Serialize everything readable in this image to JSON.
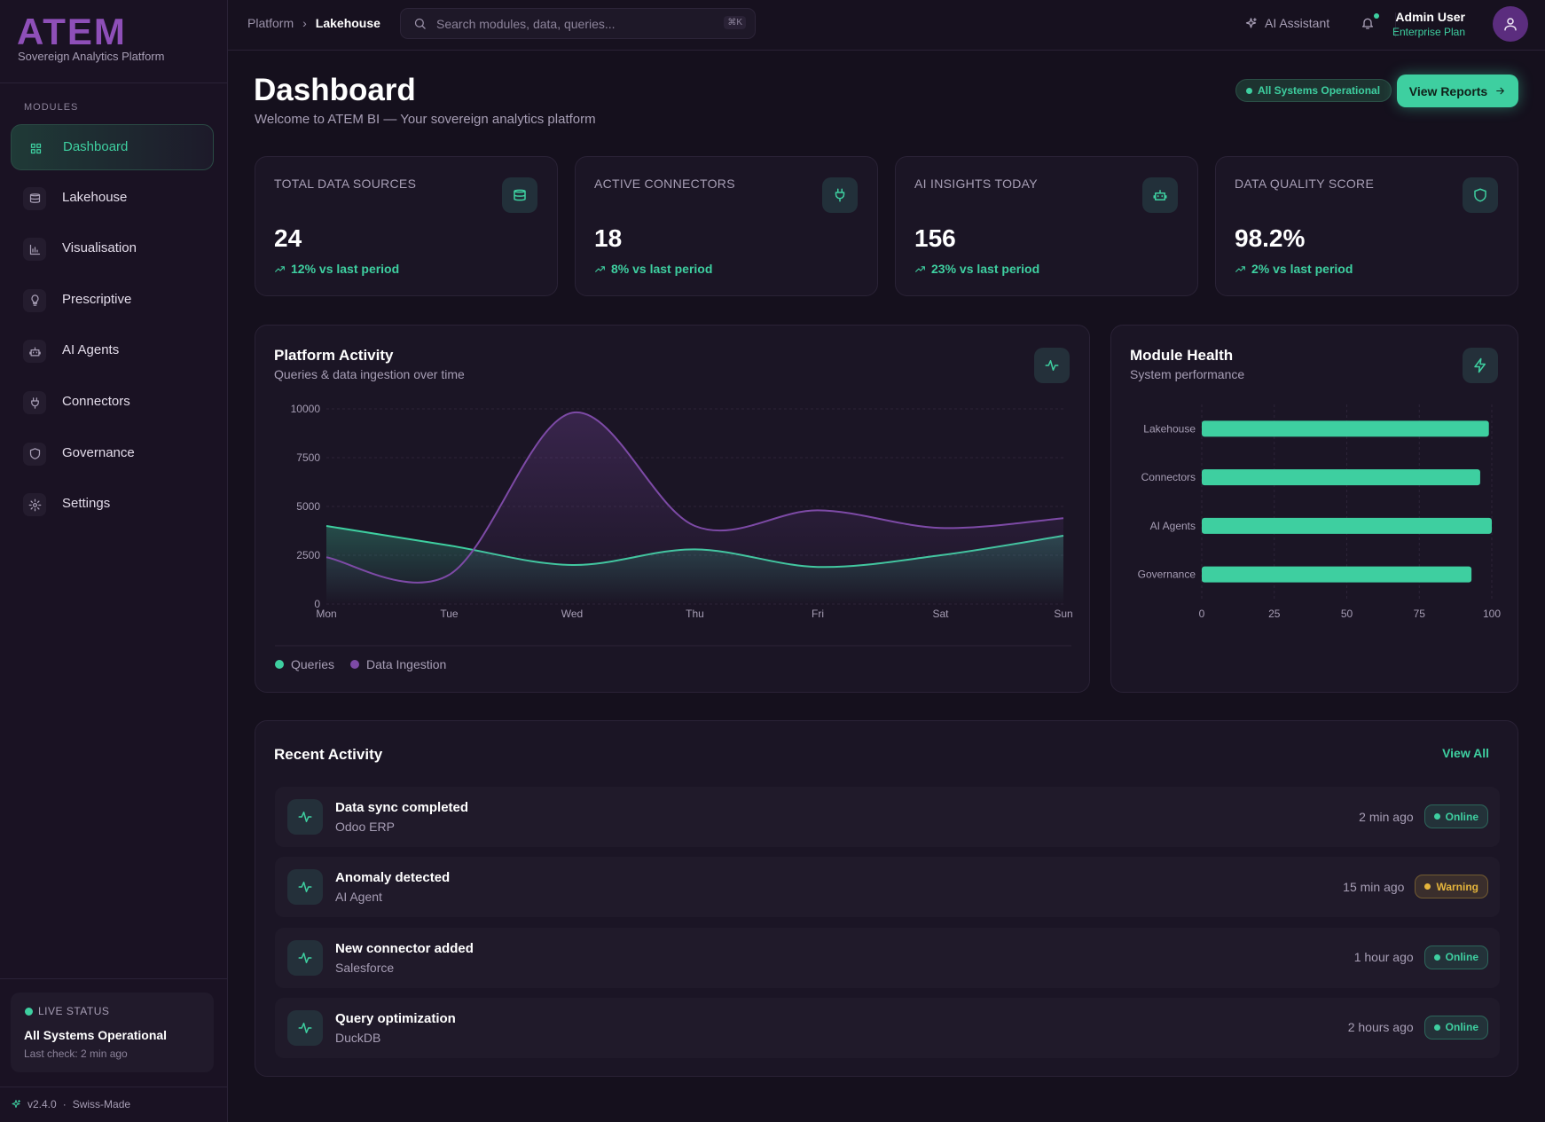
{
  "sidebar": {
    "logo": "ATEM",
    "tagline": "Sovereign Analytics Platform",
    "section": "MODULES",
    "nav": [
      "Dashboard",
      "Lakehouse",
      "Visualisation",
      "Prescriptive",
      "AI Agents",
      "Connectors",
      "Governance",
      "Settings"
    ],
    "status": {
      "label": "LIVE STATUS",
      "title": "All Systems Operational",
      "note": "Last check: 2 min ago"
    },
    "version": "v2.4.0",
    "separator": "·",
    "origin": "Swiss-Made"
  },
  "header": {
    "breadcrumb": [
      "Platform",
      "Lakehouse"
    ],
    "breadcrumb_separator": "›",
    "search": "Search modules, data, queries...",
    "shortcut": "⌘K",
    "assistant": "AI Assistant",
    "user": "Admin User",
    "plan": "Enterprise Plan"
  },
  "page": {
    "title": "Dashboard",
    "subtitle": "Welcome to ATEM BI — Your sovereign analytics platform",
    "status": "All Systems Operational",
    "button": "View Reports"
  },
  "stats": [
    {
      "label": "TOTAL DATA SOURCES",
      "value": "24",
      "change": "12% vs last period"
    },
    {
      "label": "ACTIVE CONNECTORS",
      "value": "18",
      "change": "8% vs last period"
    },
    {
      "label": "AI INSIGHTS TODAY",
      "value": "156",
      "change": "23% vs last period"
    },
    {
      "label": "DATA QUALITY SCORE",
      "value": "98.2%",
      "change": "2% vs last period"
    }
  ],
  "chart_data": [
    {
      "type": "line",
      "title": "Platform Activity",
      "subtitle": "Queries & data ingestion over time",
      "categories": [
        "Mon",
        "Tue",
        "Wed",
        "Thu",
        "Fri",
        "Sat",
        "Sun"
      ],
      "series": [
        {
          "name": "Queries",
          "color": "#3ecfa0",
          "values": [
            4000,
            3000,
            2000,
            2800,
            1900,
            2500,
            3500
          ]
        },
        {
          "name": "Data Ingestion",
          "color": "#7d4aa6",
          "values": [
            2400,
            1500,
            9800,
            4000,
            4800,
            3900,
            4400
          ]
        }
      ],
      "ylim": [
        0,
        10000
      ],
      "yticks": [
        0,
        2500,
        5000,
        7500,
        10000
      ],
      "grid": true,
      "legend": "bottom"
    },
    {
      "type": "bar",
      "orientation": "horizontal",
      "title": "Module Health",
      "subtitle": "System performance",
      "categories": [
        "Lakehouse",
        "Connectors",
        "AI Agents",
        "Governance"
      ],
      "values": [
        99,
        96,
        100,
        93
      ],
      "color": "#3ecfa0",
      "xlim": [
        0,
        100
      ],
      "xticks": [
        0,
        25,
        50,
        75,
        100
      ],
      "grid": true
    }
  ],
  "activity": {
    "title": "Recent Activity",
    "link": "View All",
    "items": [
      {
        "title": "Data sync completed",
        "source": "Odoo ERP",
        "time": "2 min ago",
        "status": "Online",
        "status_color": "#3ecfa0"
      },
      {
        "title": "Anomaly detected",
        "source": "AI Agent",
        "time": "15 min ago",
        "status": "Warning",
        "status_color": "#e5b53c"
      },
      {
        "title": "New connector added",
        "source": "Salesforce",
        "time": "1 hour ago",
        "status": "Online",
        "status_color": "#3ecfa0"
      },
      {
        "title": "Query optimization",
        "source": "DuckDB",
        "time": "2 hours ago",
        "status": "Online",
        "status_color": "#3ecfa0"
      }
    ]
  }
}
